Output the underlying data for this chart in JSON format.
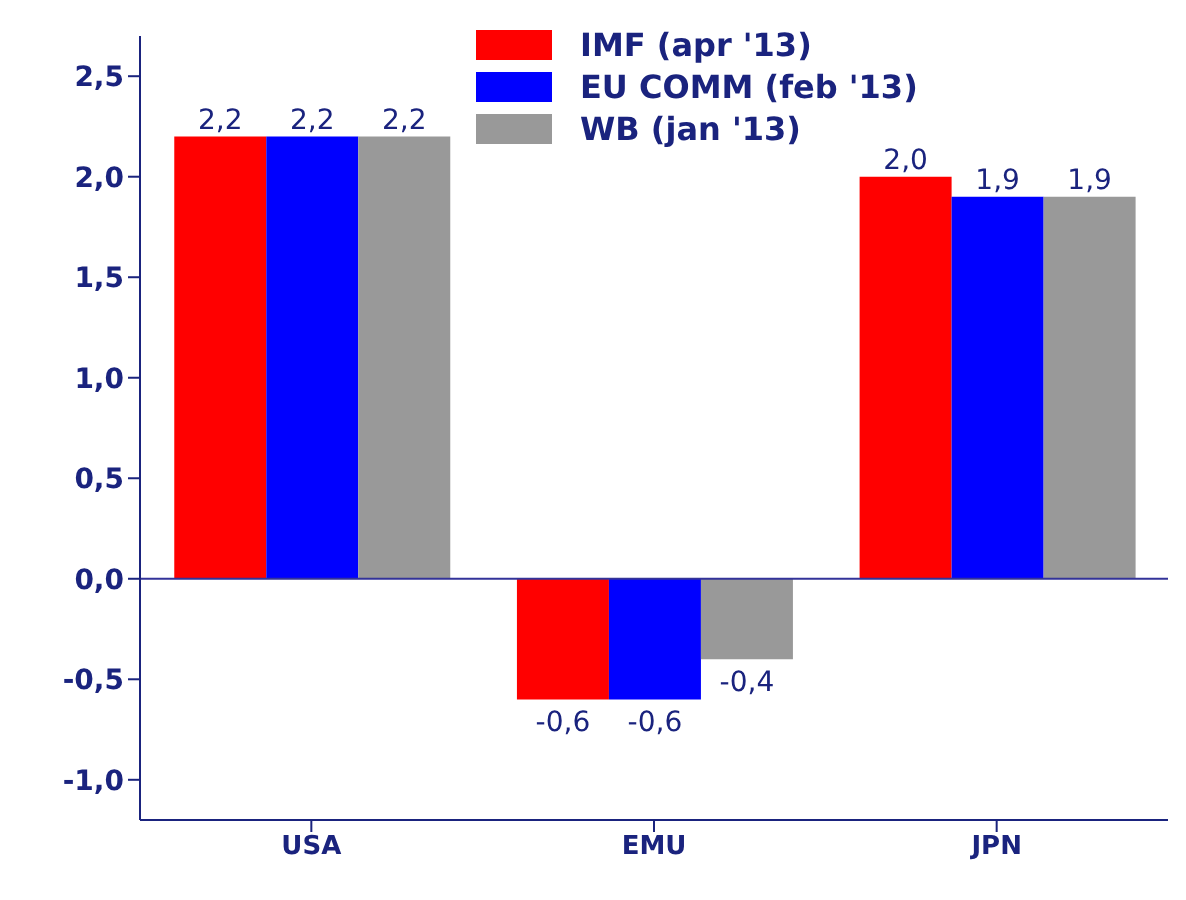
{
  "chart_data": {
    "type": "bar",
    "categories": [
      "USA",
      "EMU",
      "JPN"
    ],
    "series": [
      {
        "name": "IMF (apr '13)",
        "color": "#ff0000",
        "values": [
          2.2,
          -0.6,
          2.0
        ],
        "value_labels": [
          "2,2",
          "-0,6",
          "2,0"
        ]
      },
      {
        "name": "EU COMM (feb '13)",
        "color": "#0000ff",
        "values": [
          2.2,
          -0.6,
          1.9
        ],
        "value_labels": [
          "2,2",
          "-0,6",
          "1,9"
        ]
      },
      {
        "name": "WB (jan '13)",
        "color": "#999999",
        "values": [
          2.2,
          -0.4,
          1.9
        ],
        "value_labels": [
          "2,2",
          "-0,4",
          "1,9"
        ]
      }
    ],
    "ylim": [
      -1.2,
      2.7
    ],
    "yticks": [
      {
        "value": -1,
        "label": "-1,0"
      },
      {
        "value": -0.5,
        "label": "-0,5"
      },
      {
        "value": 0,
        "label": "0,0"
      },
      {
        "value": 0.5,
        "label": "0,5"
      },
      {
        "value": 1,
        "label": "1,0"
      },
      {
        "value": 1.5,
        "label": "1,5"
      },
      {
        "value": 2,
        "label": "2,0"
      },
      {
        "value": 2.5,
        "label": "2,5"
      }
    ],
    "ref_lines": [
      {
        "axis": "y",
        "value": 0,
        "color": "#333399"
      }
    ],
    "legend": "top",
    "grid": false
  }
}
